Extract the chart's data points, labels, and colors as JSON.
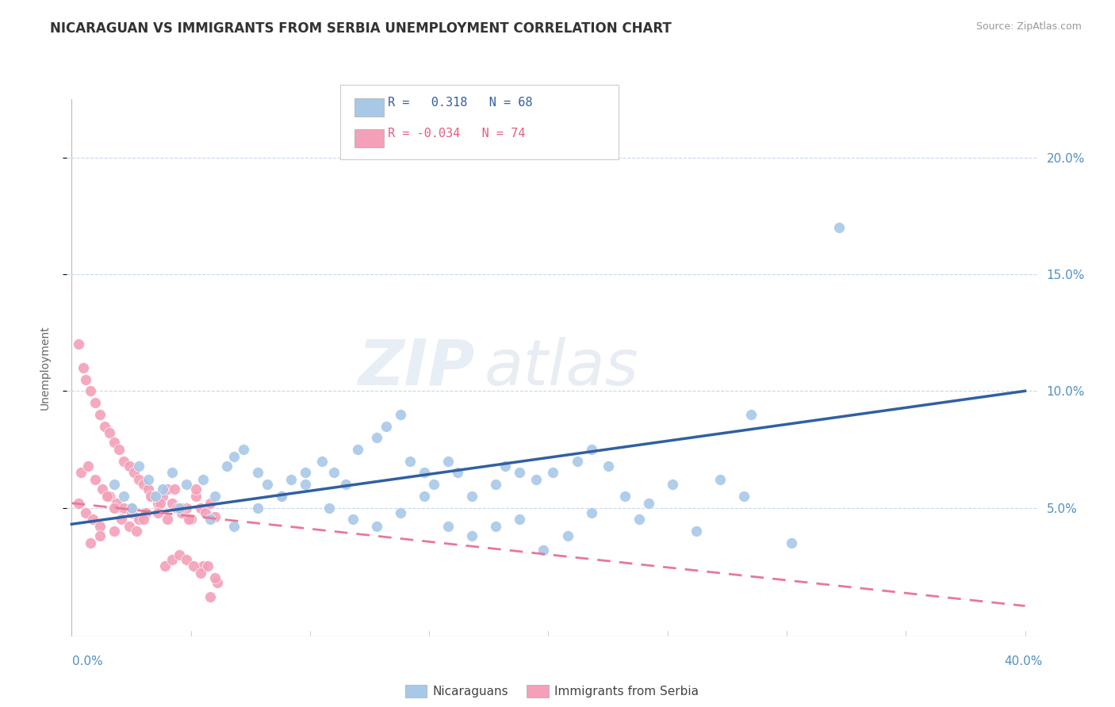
{
  "title": "NICARAGUAN VS IMMIGRANTS FROM SERBIA UNEMPLOYMENT CORRELATION CHART",
  "source": "Source: ZipAtlas.com",
  "ylabel": "Unemployment",
  "y_ticks": [
    0.05,
    0.1,
    0.15,
    0.2
  ],
  "y_tick_labels": [
    "5.0%",
    "10.0%",
    "15.0%",
    "20.0%"
  ],
  "xlim": [
    -0.002,
    0.405
  ],
  "ylim": [
    -0.005,
    0.225
  ],
  "blue_color": "#a8c8e8",
  "pink_color": "#f4a0b8",
  "blue_line_color": "#3060a0",
  "pink_line_color": "#e87898",
  "legend_R_blue": "R =  0.318",
  "legend_N_blue": "N = 68",
  "legend_R_pink": "R = -0.034",
  "legend_N_pink": "N = 74",
  "watermark_zip": "ZIP",
  "watermark_atlas": "atlas",
  "blue_scatter_x": [
    0.018,
    0.022,
    0.028,
    0.032,
    0.038,
    0.042,
    0.048,
    0.055,
    0.06,
    0.065,
    0.068,
    0.072,
    0.078,
    0.082,
    0.088,
    0.092,
    0.098,
    0.105,
    0.11,
    0.115,
    0.12,
    0.128,
    0.132,
    0.138,
    0.142,
    0.148,
    0.152,
    0.158,
    0.162,
    0.168,
    0.178,
    0.182,
    0.188,
    0.195,
    0.202,
    0.212,
    0.218,
    0.225,
    0.232,
    0.242,
    0.252,
    0.262,
    0.272,
    0.282,
    0.302,
    0.322,
    0.025,
    0.035,
    0.045,
    0.058,
    0.068,
    0.078,
    0.088,
    0.098,
    0.108,
    0.118,
    0.128,
    0.138,
    0.148,
    0.158,
    0.168,
    0.178,
    0.188,
    0.198,
    0.208,
    0.218,
    0.238,
    0.285
  ],
  "blue_scatter_y": [
    0.06,
    0.055,
    0.068,
    0.062,
    0.058,
    0.065,
    0.06,
    0.062,
    0.055,
    0.068,
    0.072,
    0.075,
    0.065,
    0.06,
    0.055,
    0.062,
    0.065,
    0.07,
    0.065,
    0.06,
    0.075,
    0.08,
    0.085,
    0.09,
    0.07,
    0.065,
    0.06,
    0.07,
    0.065,
    0.055,
    0.06,
    0.068,
    0.065,
    0.062,
    0.065,
    0.07,
    0.075,
    0.068,
    0.055,
    0.052,
    0.06,
    0.04,
    0.062,
    0.055,
    0.035,
    0.17,
    0.05,
    0.055,
    0.05,
    0.045,
    0.042,
    0.05,
    0.055,
    0.06,
    0.05,
    0.045,
    0.042,
    0.048,
    0.055,
    0.042,
    0.038,
    0.042,
    0.045,
    0.032,
    0.038,
    0.048,
    0.045,
    0.09
  ],
  "pink_scatter_x": [
    0.003,
    0.005,
    0.006,
    0.008,
    0.01,
    0.012,
    0.014,
    0.016,
    0.018,
    0.02,
    0.022,
    0.024,
    0.026,
    0.028,
    0.03,
    0.032,
    0.034,
    0.036,
    0.038,
    0.04,
    0.042,
    0.044,
    0.046,
    0.048,
    0.05,
    0.052,
    0.054,
    0.056,
    0.058,
    0.06,
    0.004,
    0.007,
    0.01,
    0.013,
    0.016,
    0.019,
    0.022,
    0.025,
    0.028,
    0.031,
    0.034,
    0.037,
    0.04,
    0.043,
    0.046,
    0.049,
    0.052,
    0.055,
    0.058,
    0.061,
    0.003,
    0.006,
    0.009,
    0.012,
    0.015,
    0.018,
    0.021,
    0.024,
    0.027,
    0.03,
    0.033,
    0.036,
    0.039,
    0.042,
    0.045,
    0.048,
    0.051,
    0.054,
    0.057,
    0.06,
    0.008,
    0.012,
    0.018,
    0.025
  ],
  "pink_scatter_y": [
    0.12,
    0.11,
    0.105,
    0.1,
    0.095,
    0.09,
    0.085,
    0.082,
    0.078,
    0.075,
    0.07,
    0.068,
    0.065,
    0.062,
    0.06,
    0.058,
    0.055,
    0.052,
    0.055,
    0.058,
    0.052,
    0.05,
    0.048,
    0.05,
    0.045,
    0.055,
    0.05,
    0.048,
    0.052,
    0.046,
    0.065,
    0.068,
    0.062,
    0.058,
    0.055,
    0.052,
    0.05,
    0.048,
    0.045,
    0.048,
    0.055,
    0.052,
    0.045,
    0.058,
    0.05,
    0.045,
    0.058,
    0.025,
    0.012,
    0.018,
    0.052,
    0.048,
    0.045,
    0.042,
    0.055,
    0.05,
    0.045,
    0.042,
    0.04,
    0.045,
    0.055,
    0.048,
    0.025,
    0.028,
    0.03,
    0.028,
    0.025,
    0.022,
    0.025,
    0.02,
    0.035,
    0.038,
    0.04,
    0.05
  ],
  "blue_line_x": [
    0.0,
    0.4
  ],
  "blue_line_y_start": 0.043,
  "blue_line_y_end": 0.1,
  "pink_line_x": [
    0.0,
    0.4
  ],
  "pink_line_y_start": 0.052,
  "pink_line_y_end": 0.008,
  "grid_color": "#c8d8e8",
  "background_color": "#ffffff",
  "title_fontsize": 12,
  "tick_label_color": "#5090c0",
  "ylabel_color": "#666666",
  "legend_text_color_blue": "#3060a0",
  "legend_text_color_pink": "#e06080"
}
